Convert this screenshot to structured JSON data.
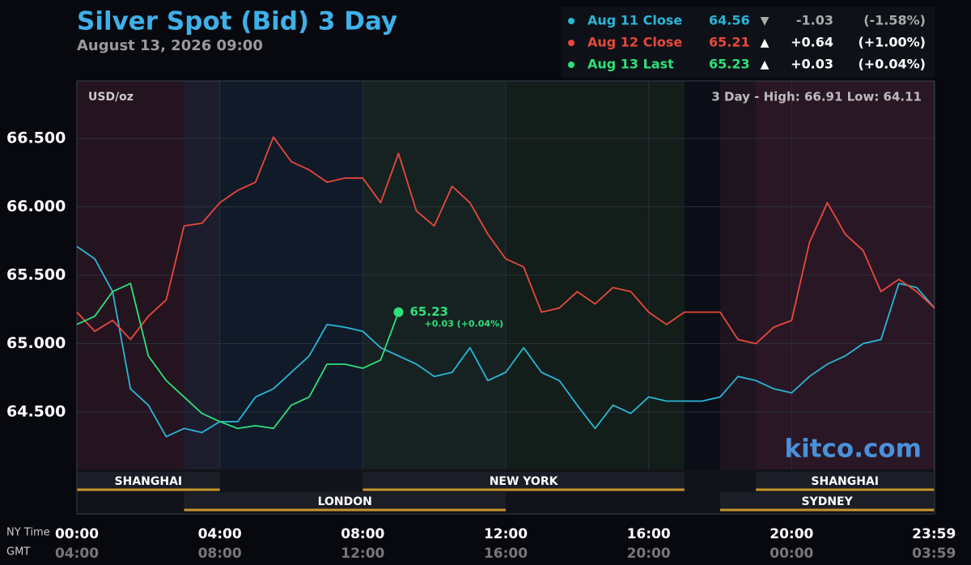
{
  "chart_data": {
    "type": "line",
    "title": "Silver Spot (Bid) 3 Day",
    "subtitle": "August 13, 2026 09:00",
    "unit_label": "USD/oz",
    "range_note": "3 Day - High: 66.91  Low: 64.11",
    "brand": "kitco.com",
    "x_axis_name": "NY Time",
    "x2_axis_name": "GMT",
    "x": [
      0,
      0.5,
      1,
      1.5,
      2,
      2.5,
      3,
      3.5,
      4,
      4.5,
      5,
      5.5,
      6,
      6.5,
      7,
      7.5,
      8,
      8.5,
      9,
      9.5,
      10,
      10.5,
      11,
      11.5,
      12,
      12.5,
      13,
      13.5,
      14,
      14.5,
      15,
      15.5,
      16,
      16.5,
      17,
      17.5,
      18,
      18.5,
      19,
      19.5,
      20,
      20.5,
      21,
      21.5,
      22,
      22.5,
      23,
      23.5,
      24
    ],
    "xlim": [
      0,
      24
    ],
    "xticks": [
      {
        "value": 0,
        "label": "00:00"
      },
      {
        "value": 4,
        "label": "04:00"
      },
      {
        "value": 8,
        "label": "08:00"
      },
      {
        "value": 12,
        "label": "12:00"
      },
      {
        "value": 16,
        "label": "16:00"
      },
      {
        "value": 20,
        "label": "20:00"
      },
      {
        "value": 23.983,
        "label": "23:59"
      }
    ],
    "x2ticks": [
      {
        "value": 0,
        "label": "04:00"
      },
      {
        "value": 4,
        "label": "08:00"
      },
      {
        "value": 8,
        "label": "12:00"
      },
      {
        "value": 12,
        "label": "16:00"
      },
      {
        "value": 16,
        "label": "20:00"
      },
      {
        "value": 20,
        "label": "00:00"
      },
      {
        "value": 23.983,
        "label": "03:59"
      }
    ],
    "ylim": [
      64.08,
      66.92
    ],
    "yticks": [
      {
        "value": 64.5,
        "label": "64.500"
      },
      {
        "value": 65,
        "label": "65.000"
      },
      {
        "value": 65.5,
        "label": "65.500"
      },
      {
        "value": 66,
        "label": "66.000"
      },
      {
        "value": 66.5,
        "label": "66.500"
      }
    ],
    "grid": true,
    "series": [
      {
        "name": "Aug 11 Close",
        "color": "#29b6d6",
        "price": "64.56",
        "arrow": "▼",
        "change": "-1.03",
        "change_pct": "(-1.58%)",
        "values": [
          65.71,
          65.62,
          65.38,
          64.67,
          64.55,
          64.32,
          64.38,
          64.35,
          64.43,
          64.43,
          64.61,
          64.67,
          64.79,
          64.91,
          65.14,
          65.12,
          65.09,
          64.97,
          64.91,
          64.85,
          64.76,
          64.79,
          64.97,
          64.73,
          64.79,
          64.97,
          64.79,
          64.73,
          64.55,
          64.38,
          64.55,
          64.49,
          64.61,
          64.58,
          64.58,
          64.58,
          64.61,
          64.76,
          64.73,
          64.67,
          64.64,
          64.76,
          64.85,
          64.91,
          65.0,
          65.03,
          65.44,
          65.41,
          65.26
        ]
      },
      {
        "name": "Aug 12 Close",
        "color": "#e8483c",
        "price": "65.21",
        "arrow": "▲",
        "change": "+0.64",
        "change_pct": "(+1.00%)",
        "values": [
          65.23,
          65.09,
          65.17,
          65.03,
          65.2,
          65.32,
          65.86,
          65.88,
          66.03,
          66.12,
          66.18,
          66.51,
          66.33,
          66.27,
          66.18,
          66.21,
          66.21,
          66.03,
          66.39,
          65.97,
          65.86,
          66.15,
          66.03,
          65.8,
          65.62,
          65.56,
          65.23,
          65.26,
          65.38,
          65.29,
          65.41,
          65.38,
          65.23,
          65.14,
          65.23,
          65.23,
          65.23,
          65.03,
          65.0,
          65.12,
          65.17,
          65.74,
          66.03,
          65.8,
          65.68,
          65.38,
          65.47,
          65.38,
          65.26
        ]
      },
      {
        "name": "Aug 13 Last",
        "color": "#2ee07a",
        "price": "65.23",
        "arrow": "▲",
        "change": "+0.03",
        "change_pct": "(+0.04%)",
        "values": [
          65.14,
          65.2,
          65.38,
          65.44,
          64.91,
          64.73,
          64.61,
          64.49,
          64.43,
          64.38,
          64.4,
          64.38,
          64.55,
          64.61,
          64.85,
          64.85,
          64.82,
          64.88,
          65.23,
          null,
          null,
          null,
          null,
          null,
          null,
          null,
          null,
          null,
          null,
          null,
          null,
          null,
          null,
          null,
          null,
          null,
          null,
          null,
          null,
          null,
          null,
          null,
          null,
          null,
          null,
          null,
          null,
          null,
          null
        ]
      }
    ],
    "annotation": {
      "text": "65.23",
      "detail": "+0.03 (+0.04%)"
    },
    "sessions": [
      {
        "name": "SHANGHAI",
        "start": 0,
        "end": 4,
        "row": 0,
        "color": "#3a1a2a"
      },
      {
        "name": "LONDON",
        "start": 3,
        "end": 12,
        "row": 1,
        "color": "#18243a"
      },
      {
        "name": "NEW YORK",
        "start": 8,
        "end": 17,
        "row": 0,
        "color": "#1c2a1e"
      },
      {
        "name": "SHANGHAI",
        "start": 19,
        "end": 23.983,
        "row": 0,
        "color": "#3a1a2a"
      },
      {
        "name": "SYDNEY",
        "start": 18,
        "end": 23.983,
        "row": 1,
        "color": "#301a2a"
      }
    ]
  }
}
